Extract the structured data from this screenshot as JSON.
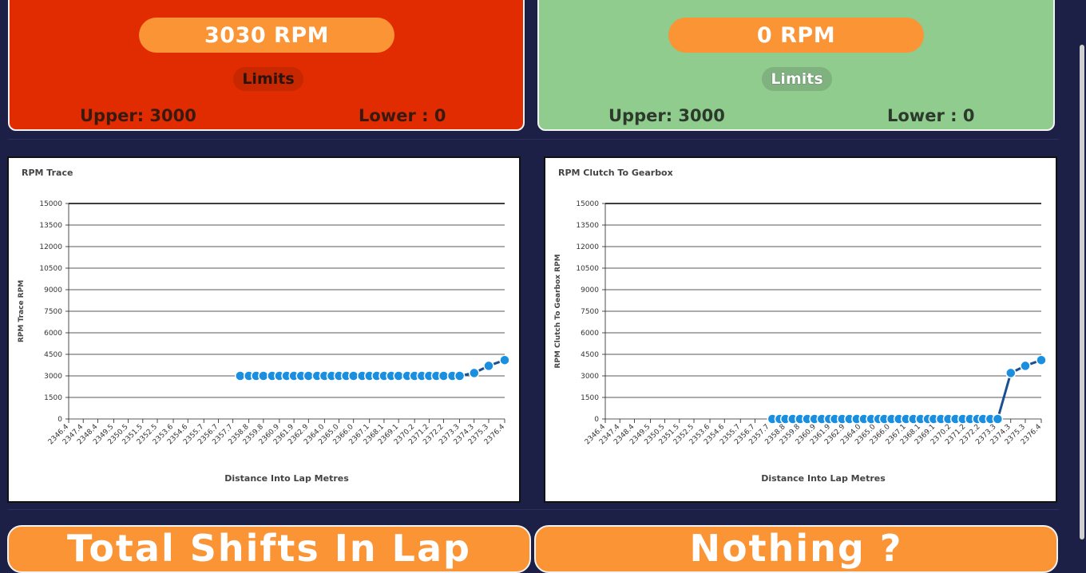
{
  "gauges": [
    {
      "rpm_label": "3030 RPM",
      "limits_label": "Limits",
      "upper_label": "Upper: 3000",
      "lower_label": "Lower : 0",
      "background": "#e02c00",
      "limits_pill_color": "#c82800",
      "status": "over-limit"
    },
    {
      "rpm_label": "0 RPM",
      "limits_label": "Limits",
      "upper_label": "Upper: 3000",
      "lower_label": "Lower : 0",
      "background": "#8fcc8e",
      "limits_pill_color": "#7fb27e",
      "status": "ok"
    }
  ],
  "accent_color": "#fb9435",
  "chart_data": [
    {
      "type": "line",
      "title": "RPM Trace",
      "xlabel": "Distance Into Lap Metres",
      "ylabel": "RPM Trace RPM",
      "ylim": [
        0,
        15000
      ],
      "yticks": [
        "0",
        "1500",
        "3000",
        "4500",
        "6000",
        "7500",
        "9000",
        "10500",
        "12000",
        "13500",
        "15000"
      ],
      "xticks": [
        "2346.4",
        "2347.4",
        "2348.4",
        "2349.5",
        "2350.5",
        "2351.5",
        "2352.5",
        "2353.6",
        "2354.6",
        "2355.7",
        "2356.7",
        "2357.7",
        "2358.8",
        "2359.8",
        "2360.9",
        "2361.9",
        "2362.9",
        "2364.0",
        "2365.0",
        "2366.0",
        "2367.1",
        "2368.1",
        "2369.1",
        "2370.2",
        "2371.2",
        "2372.2",
        "2373.3",
        "2374.3",
        "2375.3",
        "2376.4"
      ],
      "series": [
        {
          "name": "",
          "x": [
            2358.2,
            2358.8,
            2359.3,
            2359.8,
            2360.4,
            2360.9,
            2361.4,
            2361.9,
            2362.4,
            2362.9,
            2363.5,
            2364.0,
            2364.5,
            2365.0,
            2365.5,
            2366.0,
            2366.6,
            2367.1,
            2367.6,
            2368.1,
            2368.6,
            2369.1,
            2369.7,
            2370.2,
            2370.7,
            2371.2,
            2371.7,
            2372.2,
            2372.8,
            2373.3,
            2374.3,
            2375.3,
            2376.4
          ],
          "values": [
            3000,
            3000,
            3000,
            3000,
            3000,
            3000,
            3000,
            3000,
            3000,
            3000,
            3000,
            3000,
            3000,
            3000,
            3000,
            3000,
            3000,
            3000,
            3000,
            3000,
            3000,
            3000,
            3000,
            3000,
            3000,
            3000,
            3000,
            3000,
            3000,
            3000,
            3200,
            3700,
            4100
          ]
        }
      ],
      "grid": true
    },
    {
      "type": "line",
      "title": "RPM Clutch To Gearbox",
      "xlabel": "Distance Into Lap Metres",
      "ylabel": "RPM Clutch To Gearbox RPM",
      "ylim": [
        0,
        15000
      ],
      "yticks": [
        "0",
        "1500",
        "3000",
        "4500",
        "6000",
        "7500",
        "9000",
        "10500",
        "12000",
        "13500",
        "15000"
      ],
      "xticks": [
        "2346.4",
        "2347.4",
        "2348.4",
        "2349.5",
        "2350.5",
        "2351.5",
        "2352.5",
        "2353.6",
        "2354.6",
        "2355.7",
        "2356.7",
        "2357.7",
        "2358.8",
        "2359.8",
        "2360.9",
        "2361.9",
        "2362.9",
        "2364.0",
        "2365.0",
        "2366.0",
        "2367.1",
        "2368.1",
        "2369.1",
        "2370.2",
        "2371.2",
        "2372.2",
        "2373.3",
        "2374.3",
        "2375.3",
        "2376.4"
      ],
      "series": [
        {
          "name": "",
          "x": [
            2357.9,
            2358.4,
            2358.8,
            2359.3,
            2359.8,
            2360.3,
            2360.8,
            2361.3,
            2361.8,
            2362.2,
            2362.7,
            2363.2,
            2363.7,
            2364.2,
            2364.7,
            2365.2,
            2365.6,
            2366.1,
            2366.6,
            2367.1,
            2367.6,
            2368.1,
            2368.6,
            2369.0,
            2369.5,
            2370.0,
            2370.5,
            2371.0,
            2371.5,
            2372.0,
            2372.4,
            2372.9,
            2373.4,
            2374.3,
            2375.3,
            2376.4
          ],
          "values": [
            0,
            0,
            0,
            0,
            0,
            0,
            0,
            0,
            0,
            0,
            0,
            0,
            0,
            0,
            0,
            0,
            0,
            0,
            0,
            0,
            0,
            0,
            0,
            0,
            0,
            0,
            0,
            0,
            0,
            0,
            0,
            0,
            0,
            3200,
            3700,
            4100
          ]
        }
      ],
      "grid": true
    }
  ],
  "bottom_cards": [
    {
      "label": "Total Shifts In Lap"
    },
    {
      "label": "Nothing ?"
    }
  ]
}
